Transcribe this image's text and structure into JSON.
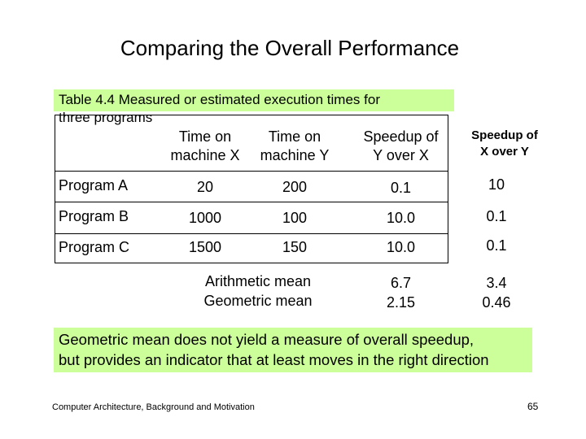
{
  "colors": {
    "highlight": "#ccff99",
    "text": "#000000",
    "border": "#000000"
  },
  "slide": {
    "title": "Comparing the Overall Performance"
  },
  "table": {
    "caption_line1": "Table 4.4    Measured or estimated execution times for",
    "caption_line2": "three programs",
    "columns": [
      "Time on machine X",
      "Time on machine Y",
      "Speedup of Y over X"
    ],
    "column_lines": [
      [
        "Time on",
        "machine X"
      ],
      [
        "Time on",
        "machine Y"
      ],
      [
        "Speedup of",
        "Y over X"
      ]
    ],
    "extra_column": [
      "Speedup of",
      "X over Y"
    ],
    "rows": [
      {
        "label": "Program A",
        "time_x": "20",
        "time_y": "200",
        "speedup_y_over_x": "0.1",
        "speedup_x_over_y": "10"
      },
      {
        "label": "Program B",
        "time_x": "1000",
        "time_y": "100",
        "speedup_y_over_x": "10.0",
        "speedup_x_over_y": "0.1"
      },
      {
        "label": "Program C",
        "time_x": "1500",
        "time_y": "150",
        "speedup_y_over_x": "10.0",
        "speedup_x_over_y": "0.1"
      }
    ],
    "means": {
      "arithmetic_label": "Arithmetic mean",
      "geometric_label": "Geometric mean",
      "arithmetic_y_over_x": "6.7",
      "geometric_y_over_x": "2.15",
      "arithmetic_x_over_y": "3.4",
      "geometric_x_over_y": "0.46"
    }
  },
  "note": {
    "line1": "Geometric mean does not yield a measure of overall speedup,",
    "line2": "but provides an indicator that at least moves in the right direction"
  },
  "footer": {
    "text": "Computer Architecture, Background and Motivation",
    "page_number": "65"
  }
}
